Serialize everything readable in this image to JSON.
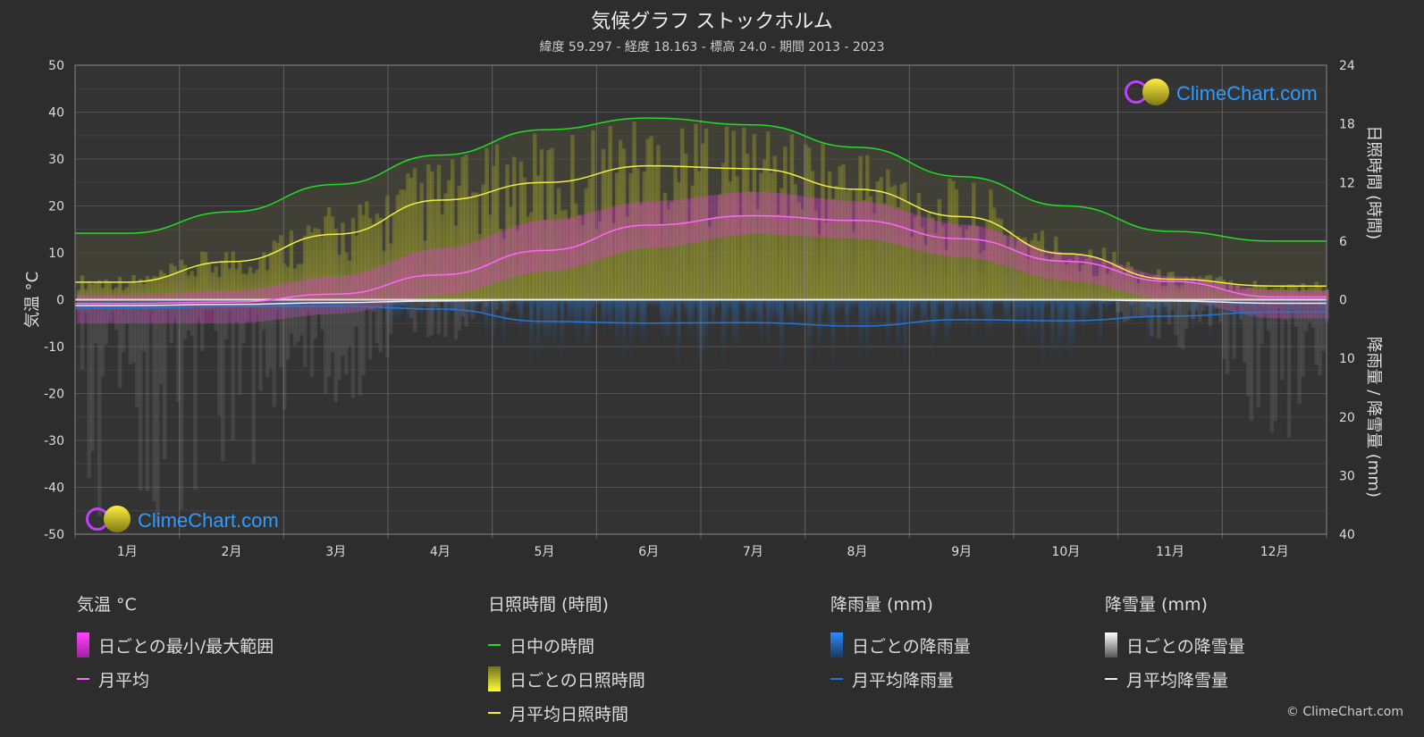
{
  "title": "気候グラフ ストックホルム",
  "subtitle": "緯度 59.297 - 経度 18.163 - 標高 24.0 - 期間 2013 - 2023",
  "watermark": "ClimeChart.com",
  "copyright": "© ClimeChart.com",
  "colors": {
    "background": "#2d2d2d",
    "plot_bg": "#333333",
    "grid": "#555555",
    "daylight": "#22dd22",
    "sunshine": "#f0f040",
    "temp_avg": "#ff66ff",
    "temp_range": "#e040d0",
    "rain": "#2277dd",
    "snow": "#cccccc"
  },
  "chart_data": {
    "type": "line",
    "title": "気候グラフ ストックホルム",
    "categories": [
      "1月",
      "2月",
      "3月",
      "4月",
      "5月",
      "6月",
      "7月",
      "8月",
      "9月",
      "10月",
      "11月",
      "12月"
    ],
    "left_axis": {
      "label": "気温 °C",
      "ticks": [
        "50",
        "40",
        "30",
        "20",
        "10",
        "0",
        "-10",
        "-20",
        "-30",
        "-40",
        "-50"
      ],
      "ylim": [
        -50,
        50
      ]
    },
    "right_axis_top": {
      "label": "日照時間 (時間)",
      "ticks": [
        "24",
        "18",
        "12",
        "6",
        "0"
      ],
      "ylim": [
        0,
        24
      ]
    },
    "right_axis_bottom": {
      "label": "降雨量 / 降雪量 (mm)",
      "ticks": [
        "0",
        "10",
        "20",
        "30",
        "40"
      ],
      "ylim": [
        0,
        40
      ]
    },
    "series": [
      {
        "name": "日中の時間",
        "axis": "hours",
        "values": [
          6.8,
          9.0,
          11.8,
          14.8,
          17.4,
          18.6,
          17.9,
          15.6,
          12.6,
          9.6,
          7.0,
          6.0
        ]
      },
      {
        "name": "月平均日照時間",
        "axis": "hours",
        "values": [
          1.8,
          3.9,
          6.7,
          10.2,
          12.0,
          13.7,
          13.4,
          11.3,
          8.5,
          4.7,
          2.1,
          1.4
        ]
      },
      {
        "name": "月平均",
        "axis": "temp",
        "values": [
          -0.8,
          -0.5,
          1.2,
          5.3,
          10.5,
          15.9,
          17.9,
          16.9,
          13.0,
          8.2,
          3.9,
          0.6
        ]
      },
      {
        "name": "月平均降雨量",
        "axis": "precip",
        "values": [
          1.4,
          1.2,
          1.1,
          1.6,
          3.7,
          4.0,
          3.9,
          4.5,
          3.4,
          3.6,
          2.8,
          2.1
        ]
      },
      {
        "name": "月平均降雪量",
        "axis": "precip",
        "values": [
          1.0,
          0.8,
          0.5,
          0.2,
          0.0,
          0.0,
          0.0,
          0.0,
          0.0,
          0.0,
          0.2,
          0.6
        ]
      }
    ],
    "daily_temp_range": {
      "min": [
        -5,
        -5,
        -3,
        1,
        6,
        11,
        14,
        13,
        9,
        4,
        0,
        -4
      ],
      "max": [
        1,
        2,
        5,
        11,
        17,
        21,
        23,
        21,
        16,
        10,
        5,
        2
      ]
    },
    "grid": true
  },
  "legend": {
    "temp": {
      "heading": "気温 °C",
      "range": "日ごとの最小/最大範囲",
      "avg": "月平均"
    },
    "sun": {
      "heading": "日照時間 (時間)",
      "daylight": "日中の時間",
      "daily": "日ごとの日照時間",
      "avg": "月平均日照時間"
    },
    "rain": {
      "heading": "降雨量 (mm)",
      "daily": "日ごとの降雨量",
      "avg": "月平均降雨量"
    },
    "snow": {
      "heading": "降雪量 (mm)",
      "daily": "日ごとの降雪量",
      "avg": "月平均降雪量"
    }
  }
}
